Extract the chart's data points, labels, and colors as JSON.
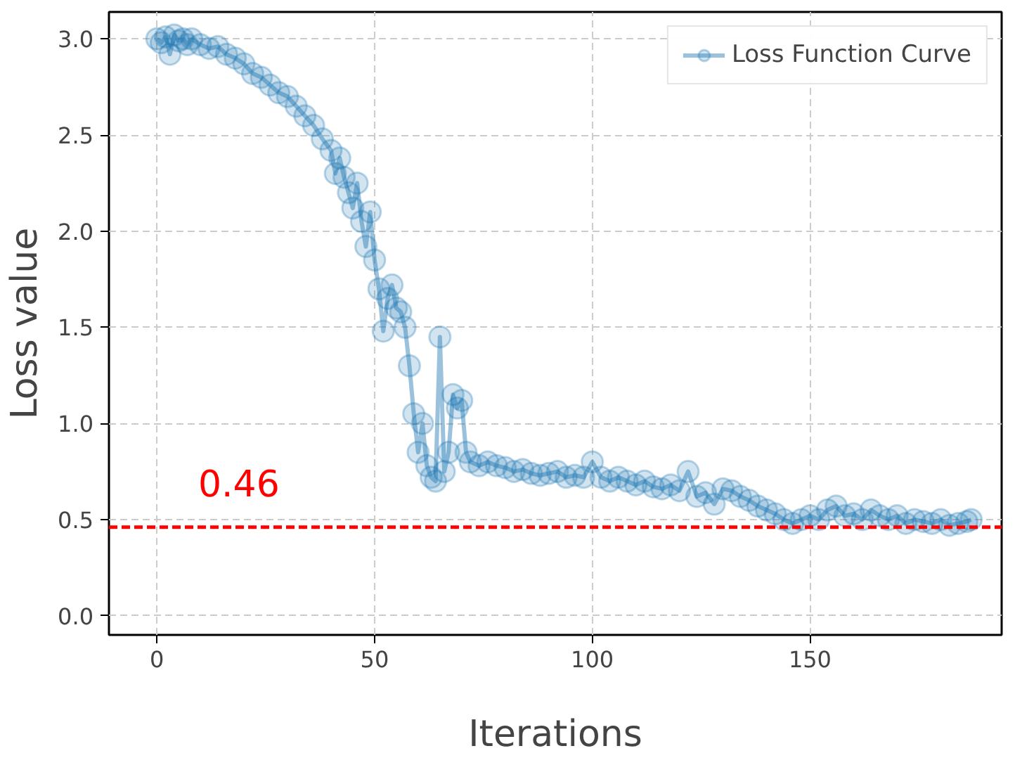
{
  "chart_data": {
    "type": "line",
    "xlabel": "Iterations",
    "ylabel": "Loss value",
    "xlim": [
      -11,
      194
    ],
    "ylim": [
      -0.1,
      3.14
    ],
    "xticks": [
      0,
      50,
      100,
      150
    ],
    "yticks": [
      {
        "value": 0,
        "label": "0.0"
      },
      0.5,
      {
        "value": 1,
        "label": "1.0"
      },
      1.5,
      {
        "value": 2,
        "label": "2.0"
      },
      2.5,
      {
        "value": 3,
        "label": "3.0"
      }
    ],
    "grid": true,
    "legend": "top right",
    "marker": "circle",
    "line_style": "solid",
    "series": [
      {
        "name": "Loss Function Curve",
        "color": "#1f77b4",
        "x": [
          0,
          1,
          2,
          3,
          4,
          5,
          6,
          7,
          8,
          10,
          12,
          14,
          16,
          18,
          20,
          22,
          24,
          26,
          28,
          30,
          32,
          34,
          36,
          38,
          40,
          41,
          42,
          43,
          44,
          45,
          46,
          47,
          48,
          49,
          50,
          51,
          52,
          53,
          54,
          55,
          56,
          57,
          58,
          59,
          60,
          61,
          62,
          63,
          64,
          65,
          66,
          67,
          68,
          69,
          70,
          71,
          72,
          74,
          76,
          78,
          80,
          82,
          84,
          86,
          88,
          90,
          92,
          94,
          96,
          98,
          100,
          102,
          104,
          106,
          108,
          110,
          112,
          114,
          116,
          118,
          120,
          122,
          124,
          126,
          128,
          130,
          132,
          134,
          136,
          138,
          140,
          142,
          144,
          146,
          148,
          150,
          152,
          154,
          156,
          158,
          160,
          162,
          164,
          166,
          168,
          170,
          172,
          174,
          176,
          178,
          180,
          182,
          184,
          186,
          187
        ],
        "values": [
          3.0,
          2.98,
          3.01,
          2.92,
          3.02,
          2.99,
          3.0,
          2.97,
          3.0,
          2.97,
          2.95,
          2.96,
          2.92,
          2.9,
          2.87,
          2.82,
          2.8,
          2.76,
          2.72,
          2.7,
          2.65,
          2.6,
          2.55,
          2.48,
          2.42,
          2.3,
          2.38,
          2.28,
          2.2,
          2.12,
          2.25,
          2.05,
          1.92,
          2.1,
          1.85,
          1.7,
          1.48,
          1.65,
          1.72,
          1.6,
          1.58,
          1.5,
          1.3,
          1.05,
          0.85,
          1.0,
          0.78,
          0.72,
          0.7,
          1.45,
          0.75,
          0.85,
          1.15,
          1.08,
          1.12,
          0.85,
          0.8,
          0.78,
          0.8,
          0.78,
          0.77,
          0.75,
          0.76,
          0.74,
          0.73,
          0.74,
          0.75,
          0.72,
          0.73,
          0.72,
          0.8,
          0.72,
          0.7,
          0.72,
          0.7,
          0.68,
          0.7,
          0.67,
          0.66,
          0.68,
          0.65,
          0.75,
          0.62,
          0.64,
          0.58,
          0.66,
          0.65,
          0.62,
          0.6,
          0.57,
          0.55,
          0.53,
          0.5,
          0.48,
          0.5,
          0.52,
          0.5,
          0.55,
          0.57,
          0.52,
          0.53,
          0.5,
          0.55,
          0.52,
          0.5,
          0.52,
          0.48,
          0.5,
          0.49,
          0.48,
          0.5,
          0.47,
          0.48,
          0.49,
          0.5
        ]
      }
    ],
    "ref_lines": [
      {
        "axis": "y",
        "value": 0.46,
        "label": "0.46",
        "color": "#ff0000",
        "line_style": "dashed"
      }
    ]
  }
}
